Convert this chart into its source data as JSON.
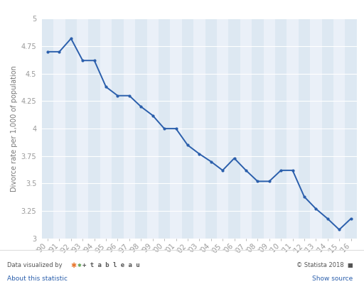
{
  "years": [
    "'90",
    "'91",
    "'92",
    "'93",
    "'94",
    "'95",
    "'96",
    "'97",
    "'98",
    "'99",
    "'00",
    "'01",
    "'02",
    "'03",
    "'04",
    "'05",
    "'06",
    "'07",
    "'08",
    "'09",
    "'10",
    "'11",
    "'12",
    "'13",
    "'14",
    "'15",
    "'16"
  ],
  "values": [
    4.7,
    4.7,
    4.82,
    4.62,
    4.62,
    4.38,
    4.3,
    4.3,
    4.2,
    4.12,
    4.0,
    4.0,
    3.85,
    3.77,
    3.7,
    3.62,
    3.73,
    3.62,
    3.52,
    3.52,
    3.62,
    3.62,
    3.38,
    3.27,
    3.18,
    3.08,
    3.18
  ],
  "line_color": "#2b5fac",
  "marker_color": "#2b5fac",
  "background_color": "#ffffff",
  "plot_bg_color": "#eaf0f8",
  "col_bg_odd": "#dde8f2",
  "grid_color": "#ffffff",
  "ylabel": "Divorce rate per 1,000 of population",
  "ylim": [
    3.0,
    5.0
  ],
  "yticks": [
    3.0,
    3.25,
    3.5,
    3.75,
    4.0,
    4.25,
    4.5,
    4.75,
    5.0
  ],
  "ytick_labels": [
    "3",
    "3.25",
    "3.5",
    "3.75",
    "4",
    "4.25",
    "4.5",
    "4.75",
    "5"
  ],
  "axis_fontsize": 7,
  "tick_fontsize": 7,
  "tick_color": "#999999",
  "label_color": "#777777"
}
